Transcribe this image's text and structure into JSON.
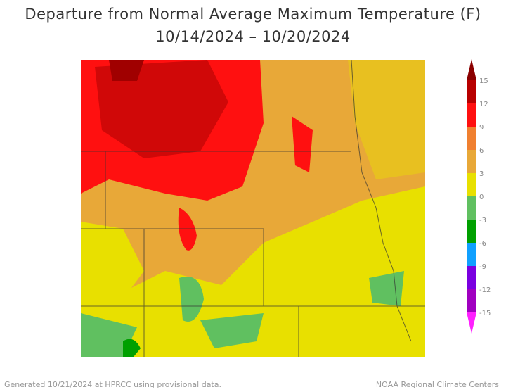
{
  "title": "Departure from Normal Average Maximum Temperature (F)",
  "subtitle": "10/14/2024 – 10/20/2024",
  "legend": {
    "ticks": [
      "15",
      "12",
      "9",
      "6",
      "3",
      "0",
      "-3",
      "-6",
      "-9",
      "-12",
      "-15"
    ],
    "colors": [
      "#8b0000",
      "#b80000",
      "#ff1010",
      "#f08030",
      "#e8a838",
      "#e8e000",
      "#60c060",
      "#00a000",
      "#10a0ff",
      "#7a00e0",
      "#a000c0",
      "#ff20ff"
    ]
  },
  "footer": {
    "generated": "Generated 10/21/2024 at HPRCC using provisional data.",
    "credit": "NOAA Regional Climate Centers"
  }
}
